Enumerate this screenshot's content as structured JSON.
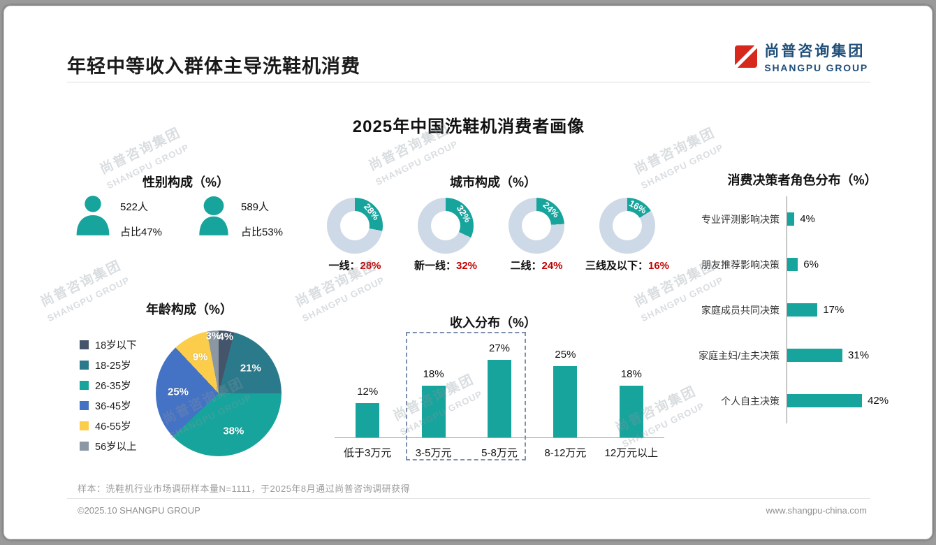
{
  "header": {
    "title": "年轻中等收入群体主导洗鞋机消费",
    "logo_cn": "尚普咨询集团",
    "logo_en": "SHANGPU GROUP"
  },
  "main_title": "2025年中国洗鞋机消费者画像",
  "watermark": {
    "cn": "尚普咨询集团",
    "en": "SHANGPU GROUP"
  },
  "colors": {
    "teal": "#16a49c",
    "donut_ring": "#cdd9e6",
    "value_red": "#c00000",
    "logo_navy": "#1f4e79",
    "logo_red": "#d7281e",
    "highlight_dash": "#7b8fae"
  },
  "gender": {
    "title": "性别构成（%）",
    "male": {
      "icon": "male-silhouette-icon",
      "count": "522人",
      "share": "占比47%"
    },
    "female": {
      "icon": "female-silhouette-icon",
      "count": "589人",
      "share": "占比53%"
    }
  },
  "city": {
    "title": "城市构成（%）",
    "items": [
      {
        "label": "一线",
        "value": 28
      },
      {
        "label": "新一线",
        "value": 32
      },
      {
        "label": "二线",
        "value": 24
      },
      {
        "label": "三线及以下",
        "value": 16
      }
    ]
  },
  "age": {
    "title": "年龄构成（%）",
    "items": [
      {
        "label": "18岁以下",
        "value": 4,
        "color": "#44546a"
      },
      {
        "label": "18-25岁",
        "value": 21,
        "color": "#2b7a8c"
      },
      {
        "label": "26-35岁",
        "value": 38,
        "color": "#16a49c"
      },
      {
        "label": "36-45岁",
        "value": 25,
        "color": "#4472c4"
      },
      {
        "label": "46-55岁",
        "value": 9,
        "color": "#fbcd4b"
      },
      {
        "label": "56岁以上",
        "value": 3,
        "color": "#8b98a4"
      }
    ]
  },
  "income": {
    "title": "收入分布（%）",
    "items": [
      {
        "label": "低于3万元",
        "value": 12,
        "highlight": false
      },
      {
        "label": "3-5万元",
        "value": 18,
        "highlight": true
      },
      {
        "label": "5-8万元",
        "value": 27,
        "highlight": true
      },
      {
        "label": "8-12万元",
        "value": 25,
        "highlight": false
      },
      {
        "label": "12万元以上",
        "value": 18,
        "highlight": false
      }
    ]
  },
  "decision": {
    "title": "消费决策者角色分布（%）",
    "items": [
      {
        "label": "专业评测影响决策",
        "value": 4
      },
      {
        "label": "朋友推荐影响决策",
        "value": 6
      },
      {
        "label": "家庭成员共同决策",
        "value": 17
      },
      {
        "label": "家庭主妇/主夫决策",
        "value": 31
      },
      {
        "label": "个人自主决策",
        "value": 42
      }
    ]
  },
  "footnote": "样本：洗鞋机行业市场调研样本量N=1111，于2025年8月通过尚普咨询调研获得",
  "footer": {
    "left": "©2025.10 SHANGPU GROUP",
    "right": "www.shangpu-china.com"
  },
  "chart_data": [
    {
      "type": "pie",
      "title": "性别构成（%）",
      "categories": [
        "男",
        "女"
      ],
      "values": [
        47,
        53
      ],
      "counts": [
        "522人",
        "589人"
      ]
    },
    {
      "type": "pie",
      "subtype": "donut-set",
      "title": "城市构成（%）",
      "categories": [
        "一线",
        "新一线",
        "二线",
        "三线及以下"
      ],
      "values": [
        28,
        32,
        24,
        16
      ]
    },
    {
      "type": "pie",
      "title": "年龄构成（%）",
      "categories": [
        "18岁以下",
        "18-25岁",
        "26-35岁",
        "36-45岁",
        "46-55岁",
        "56岁以上"
      ],
      "values": [
        4,
        21,
        38,
        25,
        9,
        3
      ],
      "legend_position": "left"
    },
    {
      "type": "bar",
      "title": "收入分布（%）",
      "categories": [
        "低于3万元",
        "3-5万元",
        "5-8万元",
        "8-12万元",
        "12万元以上"
      ],
      "values": [
        12,
        18,
        27,
        25,
        18
      ],
      "highlighted_categories": [
        "3-5万元",
        "5-8万元"
      ],
      "ylim": [
        0,
        30
      ],
      "grid": false
    },
    {
      "type": "bar",
      "orientation": "horizontal",
      "title": "消费决策者角色分布（%）",
      "categories": [
        "专业评测影响决策",
        "朋友推荐影响决策",
        "家庭成员共同决策",
        "家庭主妇/主夫决策",
        "个人自主决策"
      ],
      "values": [
        4,
        6,
        17,
        31,
        42
      ],
      "xlim": [
        0,
        50
      ],
      "grid": false
    }
  ]
}
